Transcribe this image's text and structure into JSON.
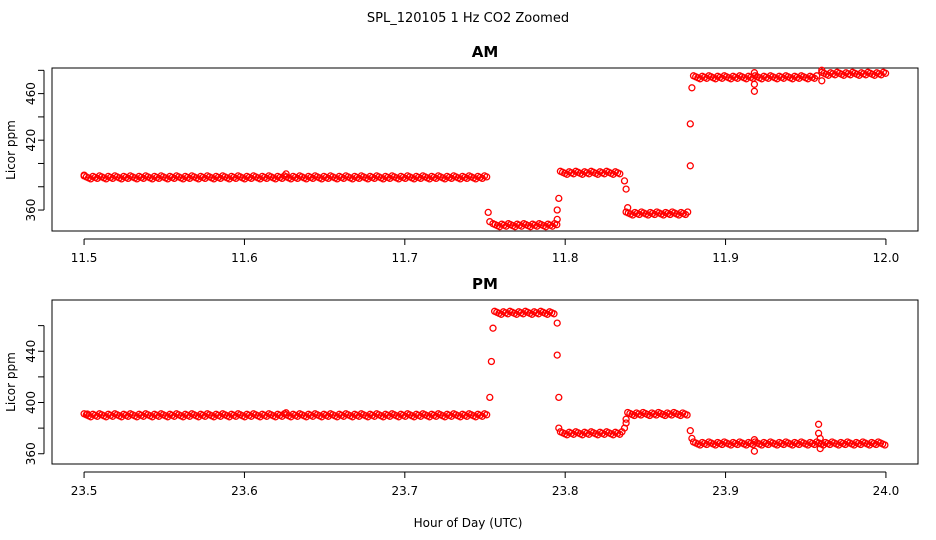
{
  "figure": {
    "title": "SPL_120105  1 Hz CO2 Zoomed",
    "xlabel": "Hour of Day (UTC)"
  },
  "chart_data": [
    {
      "type": "scatter",
      "title": "AM",
      "ylabel": "Licor ppm",
      "xlim": [
        11.48,
        12.02
      ],
      "ylim": [
        342,
        482
      ],
      "xticks": [
        11.5,
        11.6,
        11.7,
        11.8,
        11.9,
        12.0
      ],
      "xtick_labels": [
        "11.5",
        "11.6",
        "11.7",
        "11.8",
        "11.9",
        "12.0"
      ],
      "yticks": [
        360,
        380,
        400,
        420,
        440,
        460,
        480
      ],
      "ytick_labels": [
        "360",
        "",
        "",
        "420",
        "",
        "460",
        ""
      ],
      "marker": "open-circle",
      "color": "#ff0000",
      "segments": [
        {
          "x_start": 11.5,
          "x_end": 11.752,
          "y": 388
        },
        {
          "x_start": 11.755,
          "x_end": 11.795,
          "y": 347
        },
        {
          "x_start": 11.797,
          "x_end": 11.835,
          "y": 392
        },
        {
          "x_start": 11.838,
          "x_end": 11.877,
          "y": 357
        },
        {
          "x_start": 11.88,
          "x_end": 11.958,
          "y": 474
        },
        {
          "x_start": 11.96,
          "x_end": 12.0,
          "y": 477
        }
      ],
      "points": [
        {
          "x": 11.5,
          "y": 390
        },
        {
          "x": 11.626,
          "y": 391
        },
        {
          "x": 11.752,
          "y": 358
        },
        {
          "x": 11.753,
          "y": 350
        },
        {
          "x": 11.795,
          "y": 352
        },
        {
          "x": 11.795,
          "y": 360
        },
        {
          "x": 11.796,
          "y": 370
        },
        {
          "x": 11.837,
          "y": 385
        },
        {
          "x": 11.838,
          "y": 378
        },
        {
          "x": 11.839,
          "y": 362
        },
        {
          "x": 11.878,
          "y": 398
        },
        {
          "x": 11.878,
          "y": 434
        },
        {
          "x": 11.879,
          "y": 465
        },
        {
          "x": 11.918,
          "y": 478
        },
        {
          "x": 11.918,
          "y": 468
        },
        {
          "x": 11.918,
          "y": 462
        },
        {
          "x": 11.96,
          "y": 480
        },
        {
          "x": 11.96,
          "y": 471
        }
      ]
    },
    {
      "type": "scatter",
      "title": "PM",
      "ylabel": "Licor ppm",
      "xlim": [
        23.48,
        24.02
      ],
      "ylim": [
        352,
        480
      ],
      "xticks": [
        23.5,
        23.6,
        23.7,
        23.8,
        23.9,
        24.0
      ],
      "xtick_labels": [
        "23.5",
        "23.6",
        "23.7",
        "23.8",
        "23.9",
        "24.0"
      ],
      "yticks": [
        360,
        380,
        400,
        420,
        440,
        460
      ],
      "ytick_labels": [
        "360",
        "",
        "400",
        "",
        "440",
        ""
      ],
      "marker": "open-circle",
      "color": "#ff0000",
      "segments": [
        {
          "x_start": 23.5,
          "x_end": 23.752,
          "y": 390
        },
        {
          "x_start": 23.756,
          "x_end": 23.794,
          "y": 470
        },
        {
          "x_start": 23.797,
          "x_end": 23.836,
          "y": 376
        },
        {
          "x_start": 23.839,
          "x_end": 23.877,
          "y": 391
        },
        {
          "x_start": 23.88,
          "x_end": 24.0,
          "y": 368
        }
      ],
      "points": [
        {
          "x": 23.502,
          "y": 391
        },
        {
          "x": 23.626,
          "y": 392
        },
        {
          "x": 23.753,
          "y": 404
        },
        {
          "x": 23.754,
          "y": 432
        },
        {
          "x": 23.755,
          "y": 458
        },
        {
          "x": 23.795,
          "y": 462
        },
        {
          "x": 23.795,
          "y": 437
        },
        {
          "x": 23.796,
          "y": 404
        },
        {
          "x": 23.796,
          "y": 380
        },
        {
          "x": 23.837,
          "y": 380
        },
        {
          "x": 23.838,
          "y": 384
        },
        {
          "x": 23.838,
          "y": 387
        },
        {
          "x": 23.878,
          "y": 378
        },
        {
          "x": 23.879,
          "y": 372
        },
        {
          "x": 23.918,
          "y": 371
        },
        {
          "x": 23.918,
          "y": 362
        },
        {
          "x": 23.958,
          "y": 383
        },
        {
          "x": 23.958,
          "y": 376
        },
        {
          "x": 23.959,
          "y": 372
        },
        {
          "x": 23.959,
          "y": 364
        }
      ]
    }
  ]
}
